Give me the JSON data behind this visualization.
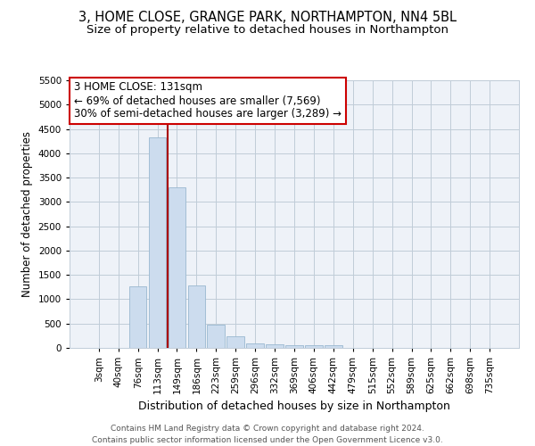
{
  "title1": "3, HOME CLOSE, GRANGE PARK, NORTHAMPTON, NN4 5BL",
  "title2": "Size of property relative to detached houses in Northampton",
  "xlabel": "Distribution of detached houses by size in Northampton",
  "ylabel": "Number of detached properties",
  "categories": [
    "3sqm",
    "40sqm",
    "76sqm",
    "113sqm",
    "149sqm",
    "186sqm",
    "223sqm",
    "259sqm",
    "296sqm",
    "332sqm",
    "369sqm",
    "406sqm",
    "442sqm",
    "479sqm",
    "515sqm",
    "552sqm",
    "589sqm",
    "625sqm",
    "662sqm",
    "698sqm",
    "735sqm"
  ],
  "values": [
    0,
    0,
    1260,
    4320,
    3300,
    1280,
    480,
    230,
    90,
    70,
    50,
    50,
    50,
    0,
    0,
    0,
    0,
    0,
    0,
    0,
    0
  ],
  "bar_color": "#ccdcee",
  "bar_edge_color": "#9ab8d0",
  "vline_x": 3.5,
  "vline_color": "#aa0000",
  "ylim": [
    0,
    5500
  ],
  "yticks": [
    0,
    500,
    1000,
    1500,
    2000,
    2500,
    3000,
    3500,
    4000,
    4500,
    5000,
    5500
  ],
  "annotation_line1": "3 HOME CLOSE: 131sqm",
  "annotation_line2": "← 69% of detached houses are smaller (7,569)",
  "annotation_line3": "30% of semi-detached houses are larger (3,289) →",
  "annotation_box_color": "#ffffff",
  "annotation_box_edge": "#cc0000",
  "footer1": "Contains HM Land Registry data © Crown copyright and database right 2024.",
  "footer2": "Contains public sector information licensed under the Open Government Licence v3.0.",
  "bg_color": "#eef2f8",
  "grid_color": "#c0ccd8",
  "title1_fontsize": 10.5,
  "title2_fontsize": 9.5,
  "xlabel_fontsize": 9,
  "ylabel_fontsize": 8.5,
  "tick_fontsize": 7.5,
  "annot_fontsize": 8.5,
  "footer_fontsize": 6.5
}
